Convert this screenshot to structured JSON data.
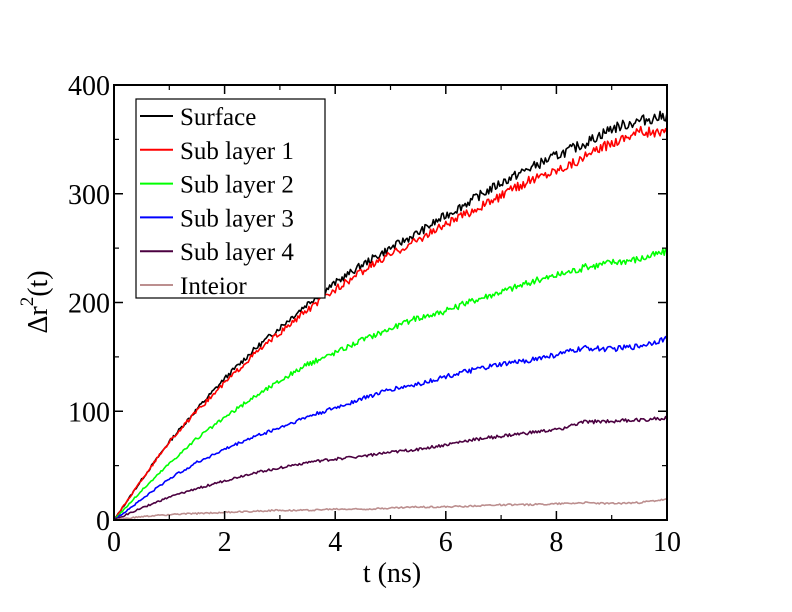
{
  "chart_data": {
    "type": "line",
    "xlabel": "t (ns)",
    "ylabel": {
      "base": "Δr",
      "sup": "2",
      "tail": "(t)"
    },
    "xlim": [
      0,
      10
    ],
    "ylim": [
      0,
      400
    ],
    "xticks": [
      0,
      2,
      4,
      6,
      8,
      10
    ],
    "yticks": [
      0,
      100,
      200,
      300,
      400
    ],
    "grid": false,
    "legend_position": "top-left",
    "x": [
      0,
      0.5,
      1,
      1.5,
      2,
      2.5,
      3,
      3.5,
      4,
      4.5,
      5,
      5.5,
      6,
      6.5,
      7,
      7.5,
      8,
      8.5,
      9,
      9.5,
      10
    ],
    "series": [
      {
        "name": "Surface",
        "color": "#000000",
        "values": [
          0,
          37,
          72,
          102,
          130,
          155,
          177,
          199,
          218,
          235,
          250,
          264,
          280,
          295,
          310,
          323,
          335,
          346,
          360,
          367,
          372
        ]
      },
      {
        "name": "Sub layer 1",
        "color": "#ff0000",
        "values": [
          0,
          37,
          72,
          100,
          126,
          151,
          172,
          193,
          212,
          229,
          244,
          258,
          272,
          285,
          298,
          312,
          322,
          333,
          347,
          358,
          355
        ]
      },
      {
        "name": "Sub layer 2",
        "color": "#00ff00",
        "values": [
          0,
          27,
          52,
          75,
          94,
          112,
          128,
          143,
          154,
          166,
          176,
          186,
          192,
          202,
          210,
          218,
          225,
          232,
          237,
          240,
          247
        ]
      },
      {
        "name": "Sub layer 3",
        "color": "#0000ff",
        "values": [
          0,
          19,
          38,
          53,
          65,
          76,
          85,
          95,
          103,
          112,
          120,
          125,
          132,
          138,
          143,
          147,
          152,
          158,
          157,
          160,
          167
        ]
      },
      {
        "name": "Sub layer 4",
        "color": "#4b0040",
        "values": [
          0,
          11,
          21,
          29,
          36,
          43,
          48,
          53,
          56,
          59,
          62,
          65,
          69,
          74,
          77,
          80,
          83,
          90,
          91,
          92,
          94
        ]
      },
      {
        "name": "Inteior",
        "color": "#bc8f8f",
        "values": [
          0,
          3,
          5,
          6,
          7,
          8,
          9,
          9,
          10,
          10,
          11,
          12,
          12,
          13,
          14,
          14,
          15,
          16,
          15,
          16,
          19
        ]
      }
    ]
  }
}
